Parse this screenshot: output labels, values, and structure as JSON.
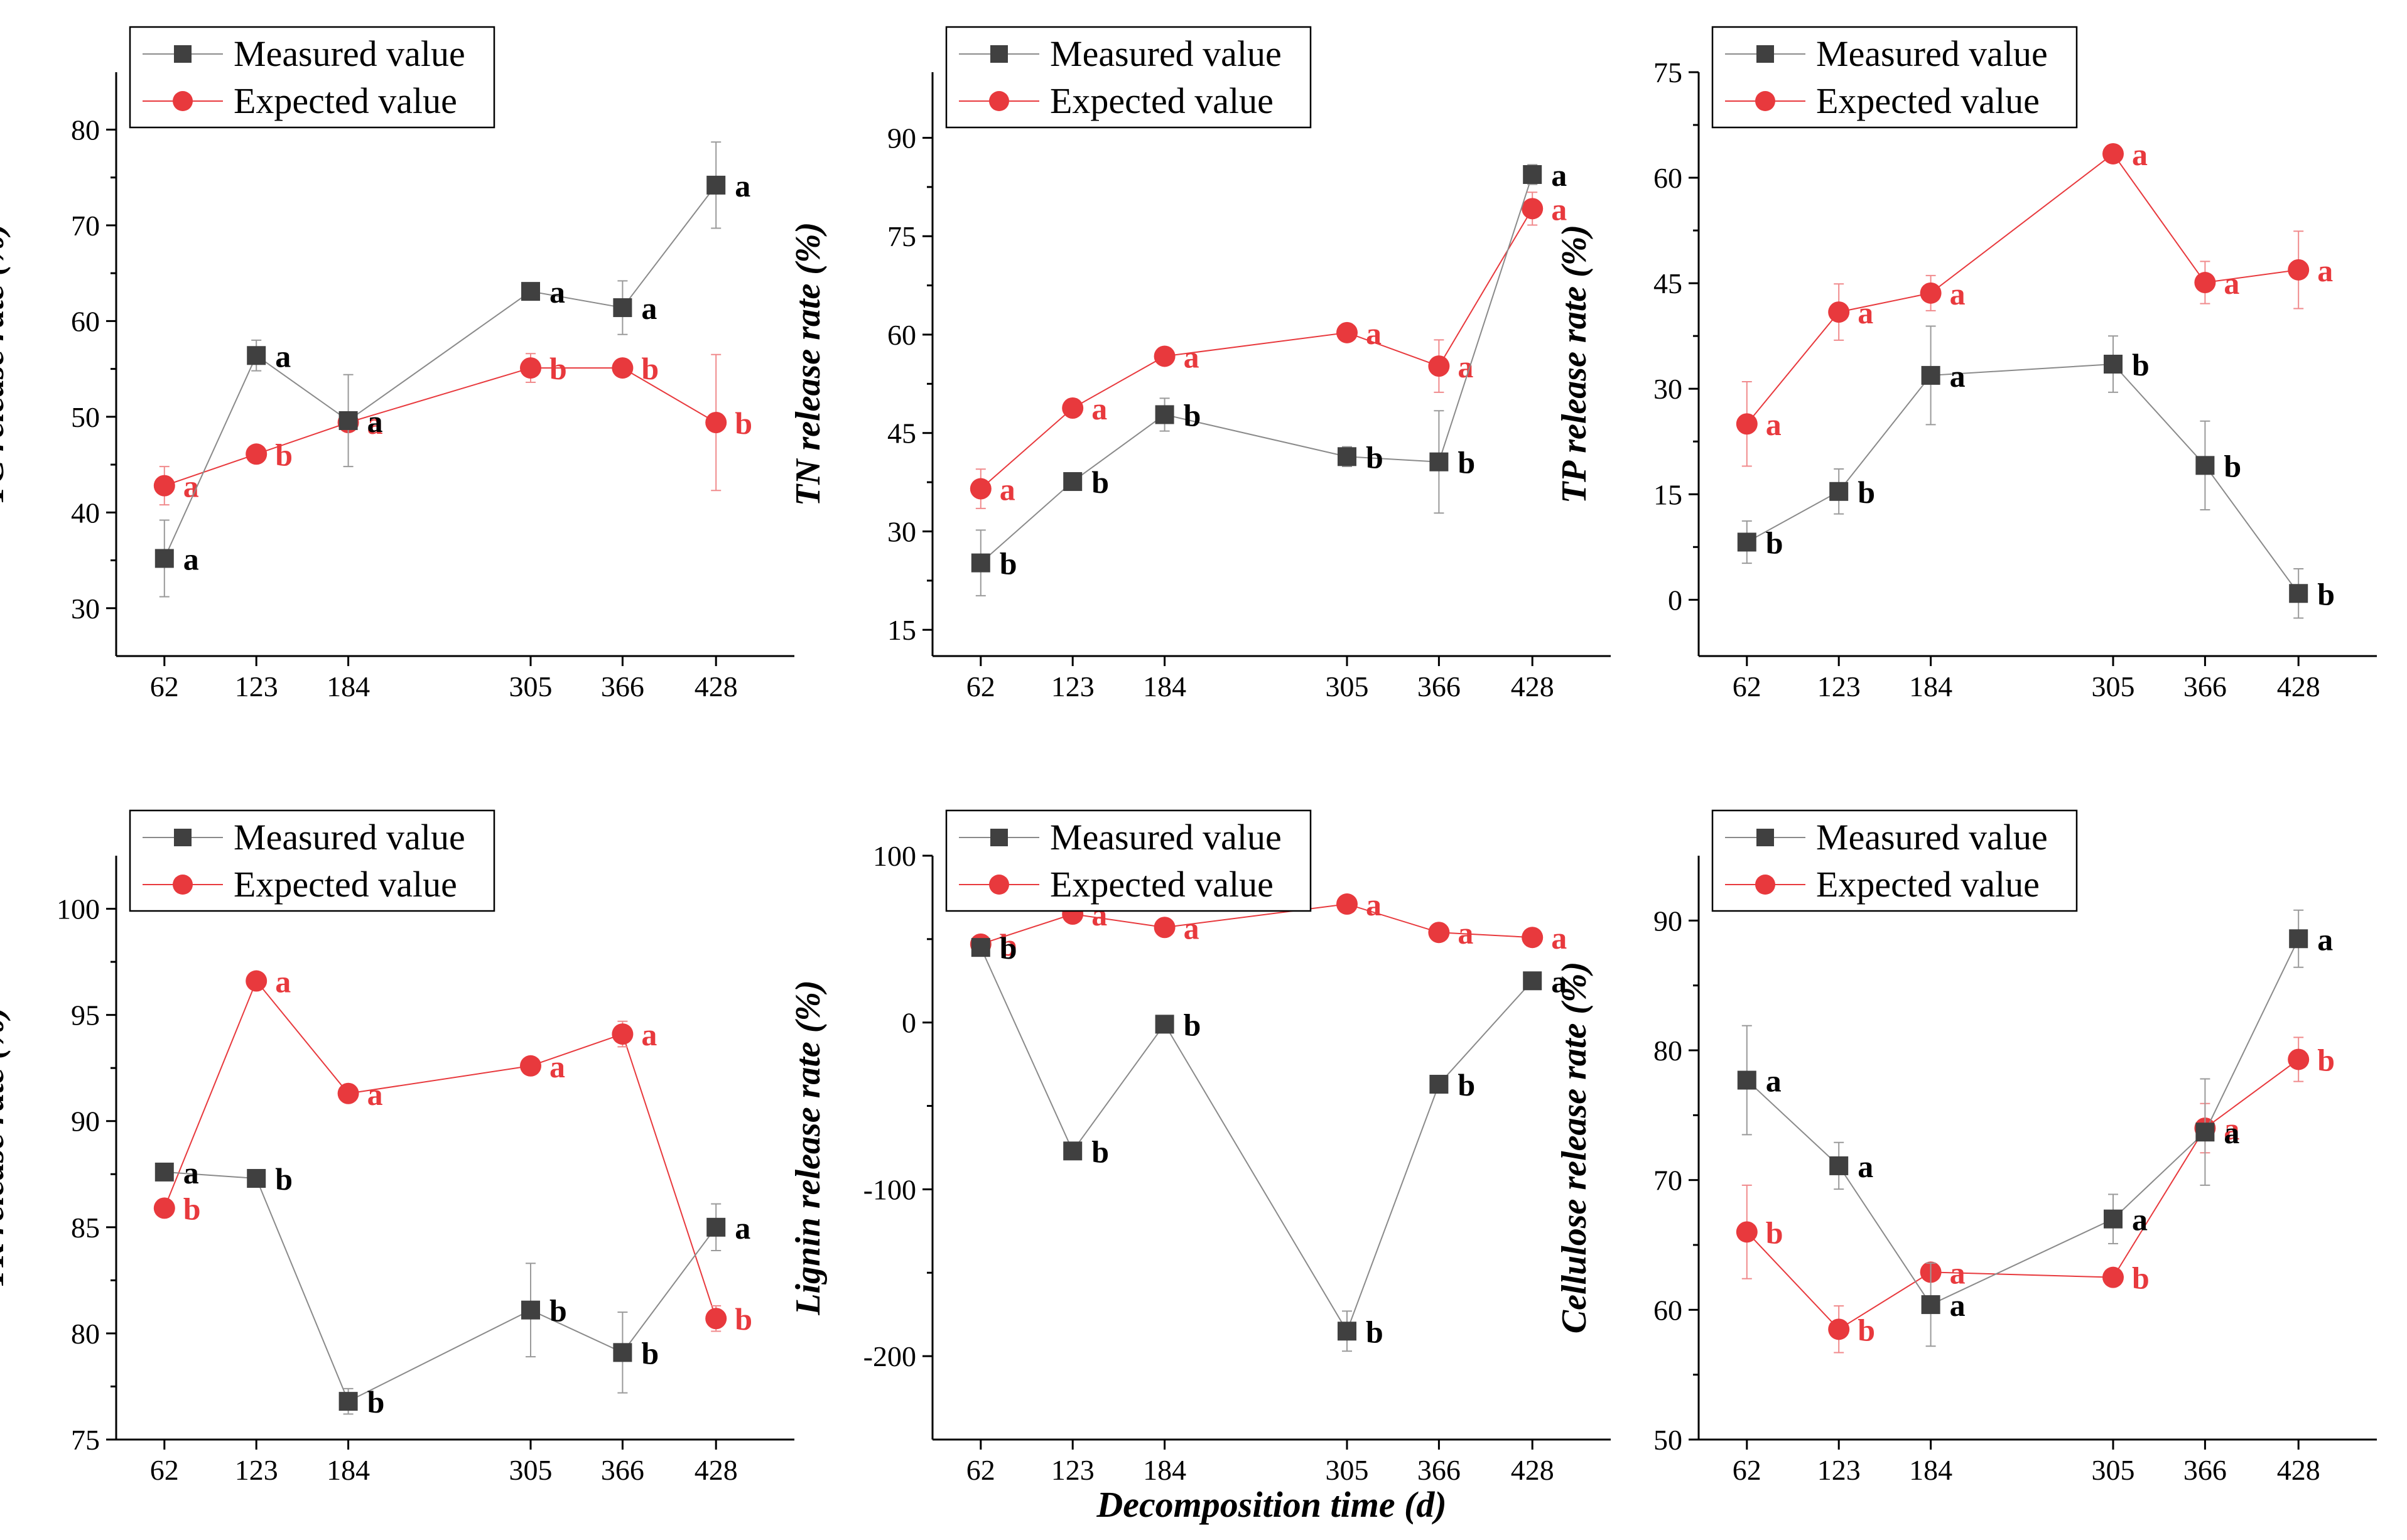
{
  "figure": {
    "xlabel": "Decomposition time (d)",
    "legend": {
      "measured": "Measured value",
      "expected": "Expected  value"
    },
    "colors": {
      "measured": "#404040",
      "expected": "#e8393d",
      "axis": "#000000",
      "measured_sig": "#000000",
      "expected_sig": "#e8393d"
    }
  },
  "chart_data": [
    {
      "type": "line",
      "title": "",
      "xlabel": "",
      "ylabel": "TC release rate (%)",
      "x": [
        62,
        123,
        184,
        305,
        366,
        428
      ],
      "xlim": [
        30,
        480
      ],
      "ylim": [
        25,
        86
      ],
      "yticks": [
        30,
        40,
        50,
        60,
        70,
        80
      ],
      "ytick_labels": [
        "30",
        "40",
        "50",
        "60",
        "70",
        "80"
      ],
      "series": [
        {
          "name": "Measured value",
          "values": [
            35.2,
            56.4,
            49.6,
            63.1,
            61.4,
            74.2
          ],
          "err": [
            4.0,
            1.6,
            4.8,
            0.5,
            2.8,
            4.5
          ],
          "sig": [
            "a",
            "a",
            "a",
            "a",
            "a",
            "a"
          ]
        },
        {
          "name": "Expected  value",
          "values": [
            42.8,
            46.1,
            49.4,
            55.1,
            55.1,
            49.4
          ],
          "err": [
            2.0,
            0.8,
            0.8,
            1.5,
            0.5,
            7.1
          ],
          "sig": [
            "a",
            "b",
            "a",
            "b",
            "b",
            "b"
          ]
        }
      ]
    },
    {
      "type": "line",
      "title": "",
      "xlabel": "",
      "ylabel": "TN release rate (%)",
      "x": [
        62,
        123,
        184,
        305,
        366,
        428
      ],
      "xlim": [
        30,
        480
      ],
      "ylim": [
        11,
        100
      ],
      "yticks": [
        15,
        30,
        45,
        60,
        75,
        90
      ],
      "ytick_labels": [
        "15",
        "30",
        "45",
        "60",
        "75",
        "90"
      ],
      "series": [
        {
          "name": "Measured value",
          "values": [
            25.2,
            37.6,
            47.8,
            41.4,
            40.6,
            84.4
          ],
          "err": [
            5.0,
            1.0,
            2.5,
            1.5,
            7.8,
            1.5
          ],
          "sig": [
            "b",
            "b",
            "b",
            "b",
            "b",
            "a"
          ]
        },
        {
          "name": "Expected  value",
          "values": [
            36.5,
            48.8,
            56.7,
            60.3,
            55.2,
            79.2
          ],
          "err": [
            3.0,
            1.0,
            0.8,
            0.7,
            4.0,
            2.5
          ],
          "sig": [
            "a",
            "a",
            "a",
            "a",
            "a",
            "a"
          ]
        }
      ]
    },
    {
      "type": "line",
      "title": "",
      "xlabel": "",
      "ylabel": "TP release rate (%)",
      "x": [
        62,
        123,
        184,
        305,
        366,
        428
      ],
      "xlim": [
        30,
        480
      ],
      "ylim": [
        -8,
        75
      ],
      "yticks": [
        0,
        15,
        30,
        45,
        60,
        75
      ],
      "ytick_labels": [
        "0",
        "15",
        "30",
        "45",
        "60",
        "75"
      ],
      "series": [
        {
          "name": "Measured value",
          "values": [
            8.2,
            15.4,
            31.9,
            33.5,
            19.1,
            0.9
          ],
          "err": [
            3.0,
            3.2,
            7.0,
            4.0,
            6.3,
            3.5
          ],
          "sig": [
            "b",
            "b",
            "a",
            "b",
            "b",
            "b"
          ]
        },
        {
          "name": "Expected  value",
          "values": [
            25.0,
            40.9,
            43.6,
            63.4,
            45.1,
            46.9
          ],
          "err": [
            6.0,
            4.0,
            2.5,
            1.0,
            3.0,
            5.5
          ],
          "sig": [
            "a",
            "a",
            "a",
            "a",
            "a",
            "a"
          ]
        }
      ]
    },
    {
      "type": "line",
      "title": "",
      "xlabel": "",
      "ylabel": "TK release rate (%)",
      "x": [
        62,
        123,
        184,
        305,
        366,
        428
      ],
      "xlim": [
        30,
        480
      ],
      "ylim": [
        75,
        102.5
      ],
      "yticks": [
        75,
        80,
        85,
        90,
        95,
        100
      ],
      "ytick_labels": [
        "75",
        "80",
        "85",
        "90",
        "95",
        "100"
      ],
      "series": [
        {
          "name": "Measured value",
          "values": [
            87.6,
            87.3,
            76.8,
            81.1,
            79.1,
            85.0
          ],
          "err": [
            0.4,
            0.3,
            0.6,
            2.2,
            1.9,
            1.1
          ],
          "sig": [
            "a",
            "b",
            "b",
            "b",
            "b",
            "a"
          ]
        },
        {
          "name": "Expected  value",
          "values": [
            85.9,
            96.6,
            91.3,
            92.6,
            94.1,
            80.7
          ],
          "err": [
            0.3,
            0.3,
            0.3,
            0.2,
            0.6,
            0.6
          ],
          "sig": [
            "b",
            "a",
            "a",
            "a",
            "a",
            "b"
          ]
        }
      ]
    },
    {
      "type": "line",
      "title": "",
      "xlabel": "",
      "ylabel": "Lignin release rate (%)",
      "x": [
        62,
        123,
        184,
        305,
        366,
        428
      ],
      "xlim": [
        30,
        480
      ],
      "ylim": [
        -250,
        100
      ],
      "yticks": [
        -200,
        -100,
        0,
        100
      ],
      "ytick_labels": [
        "-200",
        "-100",
        "0",
        "100"
      ],
      "series": [
        {
          "name": "Measured value",
          "values": [
            45,
            -77,
            -1,
            -185,
            -37,
            25
          ],
          "err": [
            3,
            4,
            2,
            12,
            3,
            2
          ],
          "sig": [
            "b",
            "b",
            "b",
            "b",
            "b",
            "a"
          ]
        },
        {
          "name": "Expected  value",
          "values": [
            47,
            65,
            57,
            71,
            54,
            51
          ],
          "err": [
            2,
            2,
            2,
            2,
            2,
            2
          ],
          "sig": [
            "b",
            "a",
            "a",
            "a",
            "a",
            "a"
          ]
        }
      ]
    },
    {
      "type": "line",
      "title": "",
      "xlabel": "",
      "ylabel": "Cellulose release rate (%)",
      "x": [
        62,
        123,
        184,
        305,
        366,
        428
      ],
      "xlim": [
        30,
        480
      ],
      "ylim": [
        50,
        95
      ],
      "yticks": [
        50,
        60,
        70,
        80,
        90
      ],
      "ytick_labels": [
        "50",
        "60",
        "70",
        "80",
        "90"
      ],
      "series": [
        {
          "name": "Measured value",
          "values": [
            77.7,
            71.1,
            60.4,
            67.0,
            73.7,
            88.6
          ],
          "err": [
            4.2,
            1.8,
            3.2,
            1.9,
            4.1,
            2.2
          ],
          "sig": [
            "a",
            "a",
            "a",
            "a",
            "a",
            "a"
          ]
        },
        {
          "name": "Expected  value",
          "values": [
            66.0,
            58.5,
            62.9,
            62.5,
            74.0,
            79.3
          ],
          "err": [
            3.6,
            1.8,
            0.5,
            0.3,
            1.9,
            1.7
          ],
          "sig": [
            "b",
            "b",
            "a",
            "b",
            "a",
            "b"
          ]
        }
      ]
    }
  ]
}
